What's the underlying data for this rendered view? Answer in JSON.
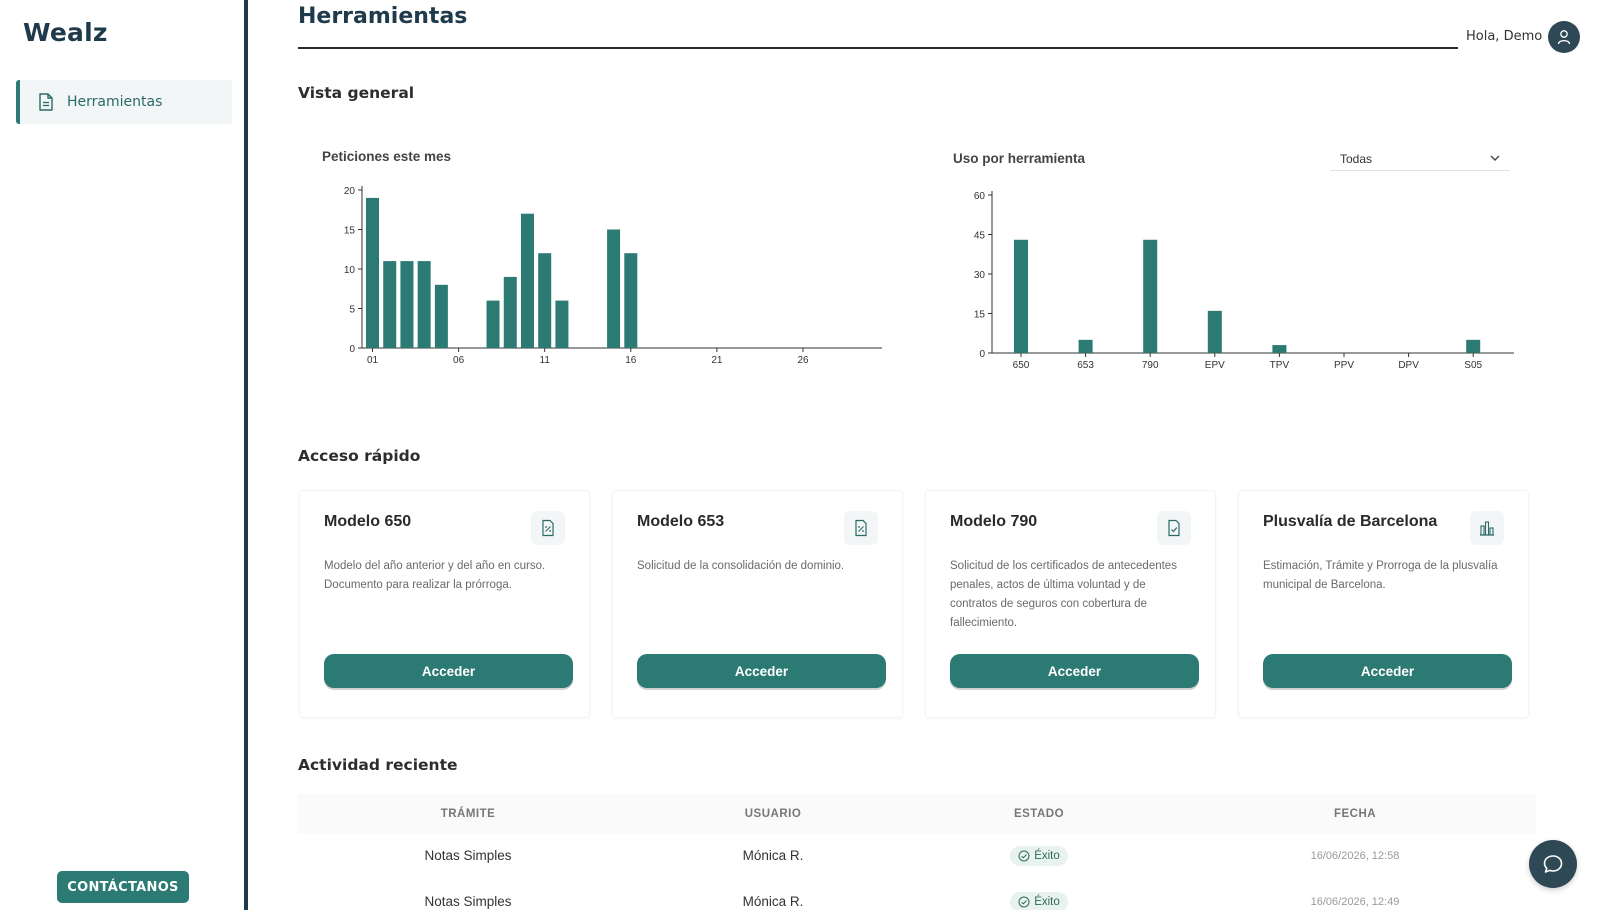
{
  "brand": "Wealz",
  "sidebar": {
    "items": [
      {
        "label": "Herramientas",
        "icon": "document-icon",
        "active": true
      }
    ],
    "contact_label": "CONTÁCTANOS"
  },
  "header": {
    "title": "Herramientas",
    "greeting": "Hola, Demo",
    "avatar_icon": "user-icon"
  },
  "sections": {
    "overview": "Vista general",
    "quick_access": "Acceso rápido",
    "recent_activity": "Actividad reciente"
  },
  "chart_data": [
    {
      "type": "bar",
      "title": "Peticiones este mes",
      "xlabel": "",
      "ylabel": "",
      "ylim": [
        0,
        20
      ],
      "yticks": [
        0,
        5,
        10,
        15,
        20
      ],
      "x_tick_labels": [
        "01",
        "06",
        "11",
        "16",
        "21",
        "26"
      ],
      "x": [
        1,
        2,
        3,
        4,
        5,
        8,
        9,
        10,
        11,
        12,
        15,
        16
      ],
      "values": [
        19,
        11,
        11,
        11,
        8,
        6,
        9,
        17,
        12,
        6,
        15,
        12
      ],
      "color": "#2b7a73",
      "grid": false
    },
    {
      "type": "bar",
      "title": "Uso por herramienta",
      "xlabel": "",
      "ylabel": "",
      "ylim": [
        0,
        60
      ],
      "yticks": [
        0,
        15,
        30,
        45,
        60
      ],
      "categories": [
        "650",
        "653",
        "790",
        "EPV",
        "TPV",
        "PPV",
        "DPV",
        "S05"
      ],
      "values": [
        43,
        5,
        43,
        16,
        3,
        0,
        0,
        5
      ],
      "color": "#2b7a73",
      "grid": false
    }
  ],
  "tool_filter": {
    "selected": "Todas"
  },
  "quick_access": [
    {
      "title": "Modelo 650",
      "icon": "percent-document-icon",
      "description": "Modelo del año anterior y del año en curso. Documento para realizar la prórroga.",
      "button": "Acceder"
    },
    {
      "title": "Modelo 653",
      "icon": "percent-document-icon",
      "description": "Solicitud de la consolidación de dominio.",
      "button": "Acceder"
    },
    {
      "title": "Modelo 790",
      "icon": "check-document-icon",
      "description": "Solicitud de los certificados de antecedentes penales, actos de última voluntad y de contratos de seguros con cobertura de fallecimiento.",
      "button": "Acceder"
    },
    {
      "title": "Plusvalía de Barcelona",
      "icon": "city-chart-icon",
      "description": "Estimación, Trámite y Prorroga de la plusvalía municipal de Barcelona.",
      "button": "Acceder"
    }
  ],
  "activity": {
    "columns": [
      "TRÁMITE",
      "USUARIO",
      "ESTADO",
      "FECHA"
    ],
    "rows": [
      {
        "tramite": "Notas Simples",
        "usuario": "Mónica R.",
        "estado": "Éxito",
        "fecha": "16/06/2026, 12:58"
      },
      {
        "tramite": "Notas Simples",
        "usuario": "Mónica R.",
        "estado": "Éxito",
        "fecha": "16/06/2026, 12:49"
      }
    ]
  },
  "chat_icon": "chat-bubble-icon",
  "colors": {
    "accent": "#2b7a73",
    "dark": "#1f3a4a",
    "success_bg": "#e8f3ef"
  }
}
